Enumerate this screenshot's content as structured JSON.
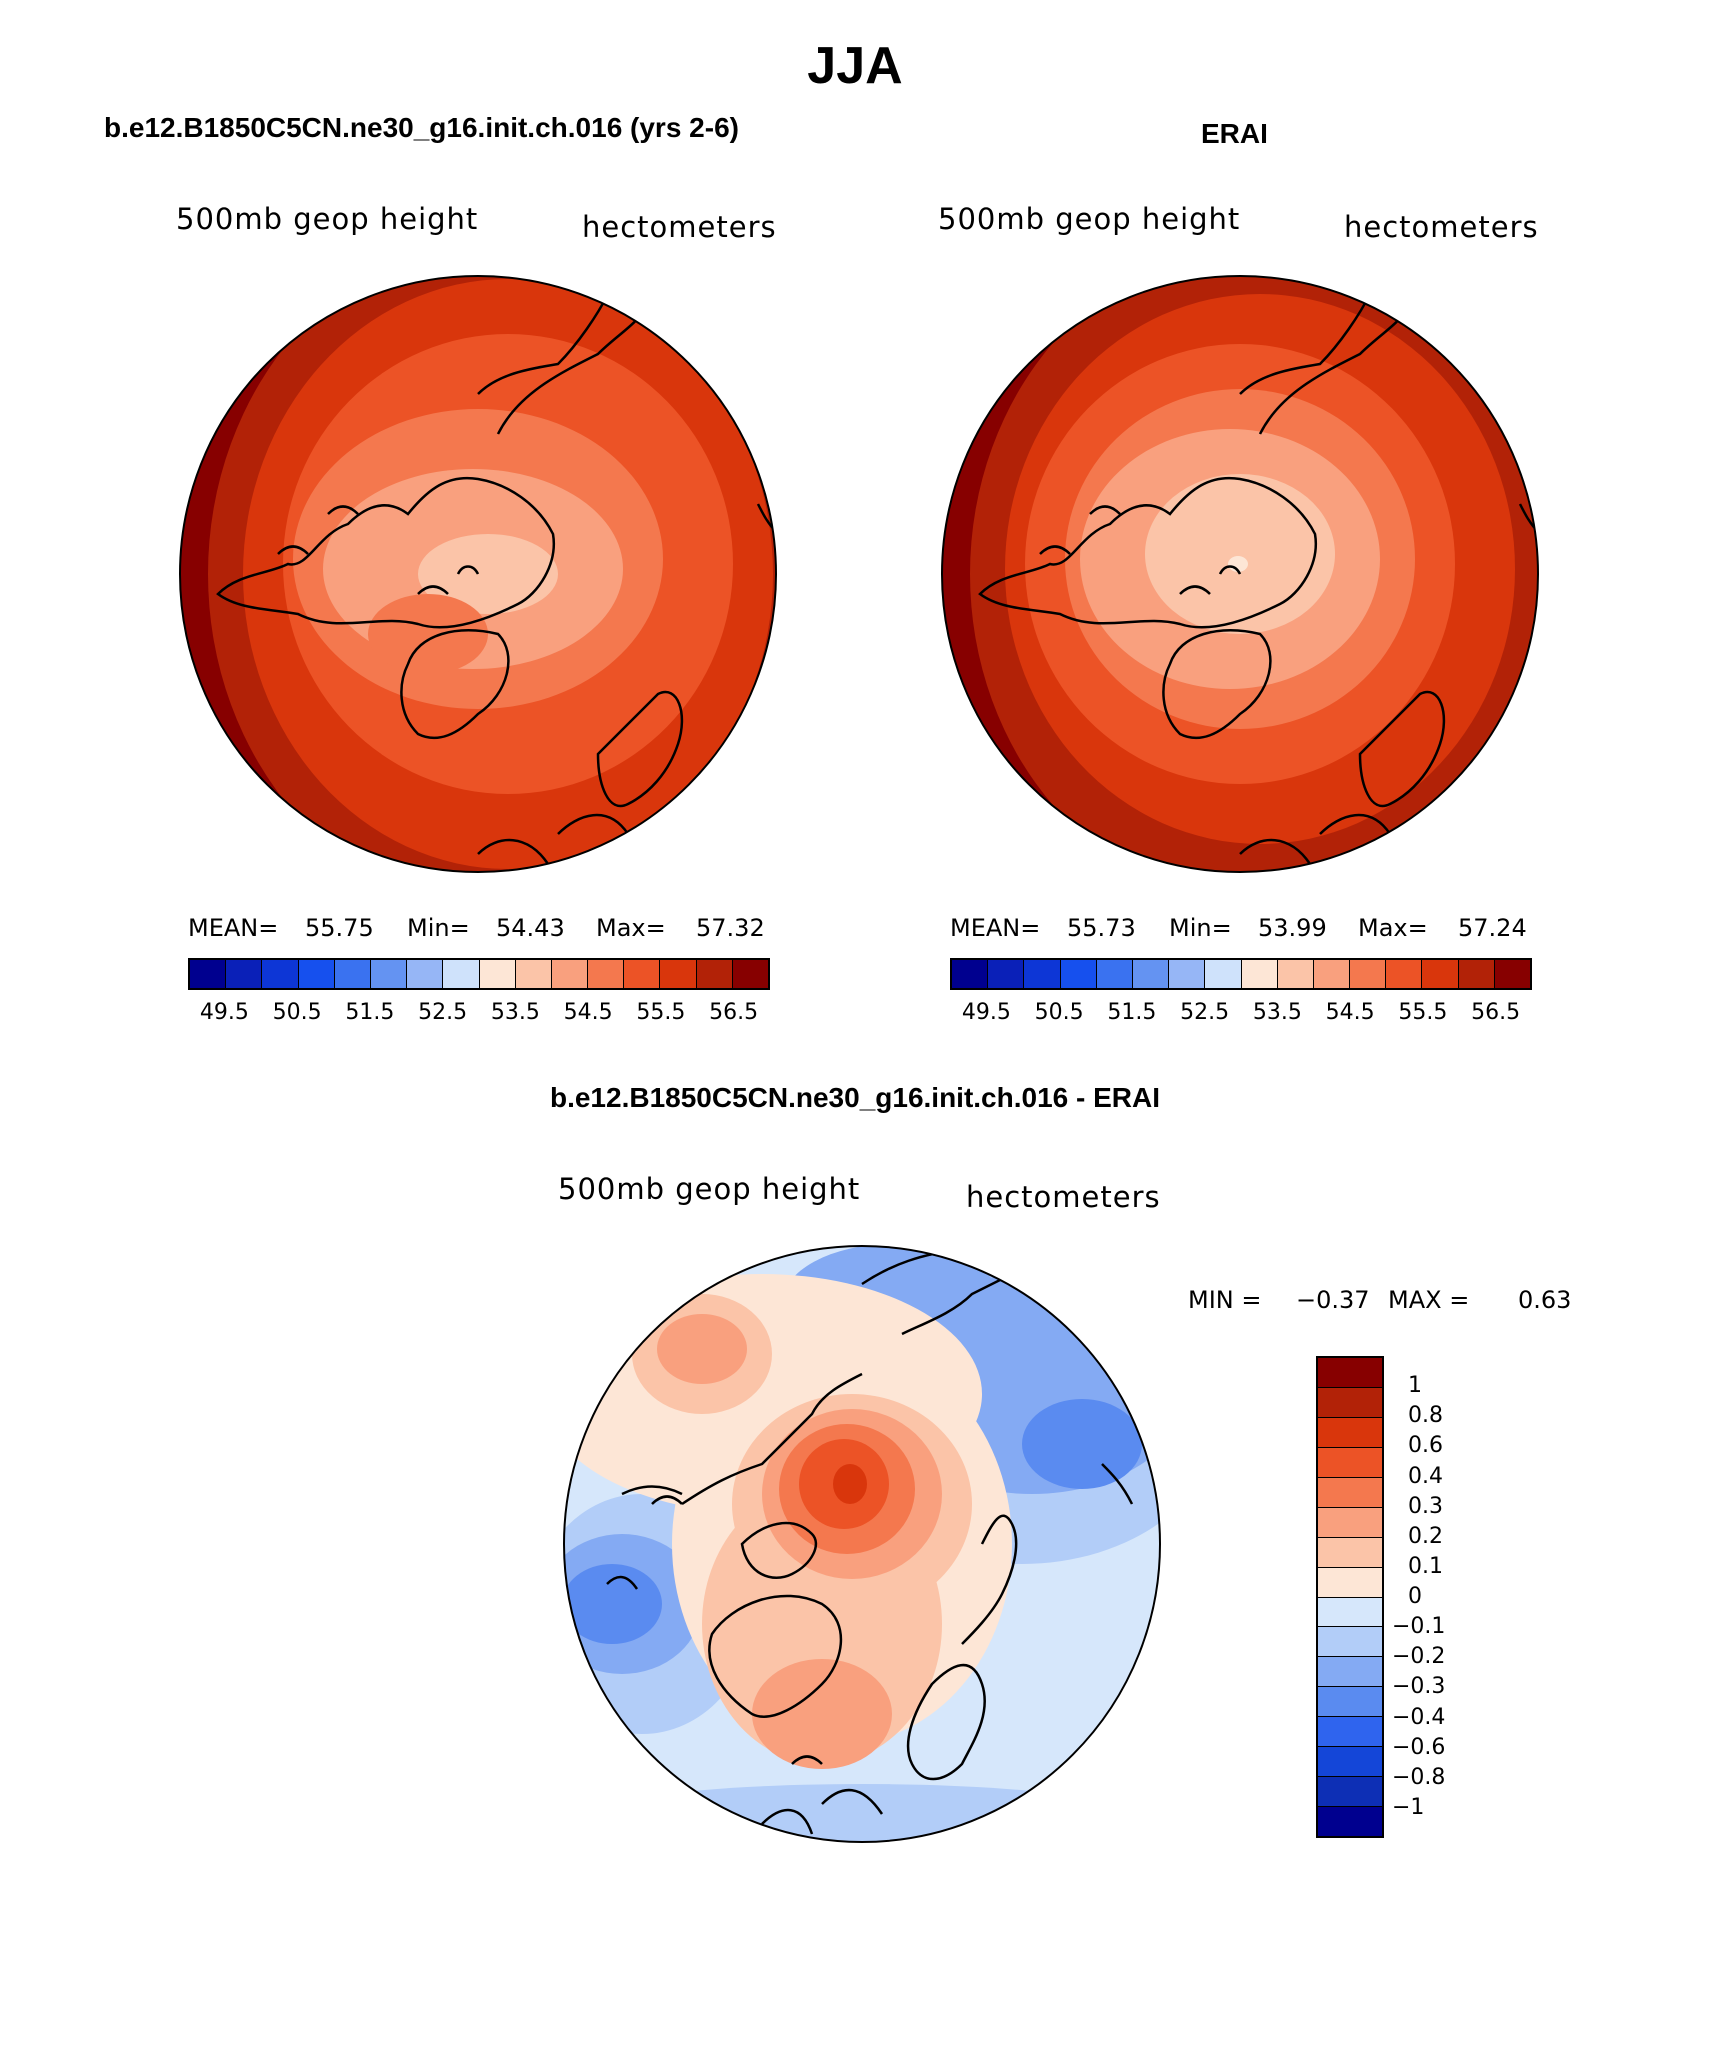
{
  "page_title": "JJA",
  "panels": [
    {
      "title": "b.e12.B1850C5CN.ne30_g16.init.ch.016 (yrs 2-6)",
      "var_label": "500mb geop height",
      "units": "hectometers",
      "mean_label": "MEAN=",
      "mean": "55.75",
      "min_label": "Min=",
      "min": "54.43",
      "max_label": "Max=",
      "max": "57.32"
    },
    {
      "title": "ERAI",
      "var_label": "500mb geop height",
      "units": "hectometers",
      "mean_label": "MEAN=",
      "mean": "55.73",
      "min_label": "Min=",
      "min": "53.99",
      "max_label": "Max=",
      "max": "57.24"
    }
  ],
  "diff_panel": {
    "title": "b.e12.B1850C5CN.ne30_g16.init.ch.016 - ERAI",
    "var_label": "500mb geop height",
    "units": "hectometers",
    "min_label": "MIN =",
    "min": "−0.37",
    "max_label": "MAX =",
    "max": "0.63"
  },
  "colorbar_abs": {
    "colors": [
      "#00008f",
      "#0a20b8",
      "#0d36d6",
      "#1650ee",
      "#3a72f0",
      "#6493f2",
      "#96b6f6",
      "#cfe2fb",
      "#fde6d6",
      "#fbc4a8",
      "#f9a07e",
      "#f4784e",
      "#ec5326",
      "#d9360c",
      "#b22207",
      "#870000"
    ],
    "tick_labels": [
      "49.5",
      "50.5",
      "51.5",
      "52.5",
      "53.5",
      "54.5",
      "55.5",
      "56.5"
    ]
  },
  "colorbar_diff": {
    "colors": [
      "#870000",
      "#b22207",
      "#d9360c",
      "#ec5326",
      "#f4784e",
      "#f9a07e",
      "#fbc4a8",
      "#fde6d6",
      "#d6e7fb",
      "#b2cdf8",
      "#84aaf3",
      "#5a8bf0",
      "#2f64ee",
      "#1446d8",
      "#0d2fb5",
      "#00008f"
    ],
    "tick_labels": [
      "1",
      "0.8",
      "0.6",
      "0.4",
      "0.3",
      "0.2",
      "0.1",
      "0",
      "−0.1",
      "−0.2",
      "−0.3",
      "−0.4",
      "−0.6",
      "−0.8",
      "−1"
    ]
  }
}
